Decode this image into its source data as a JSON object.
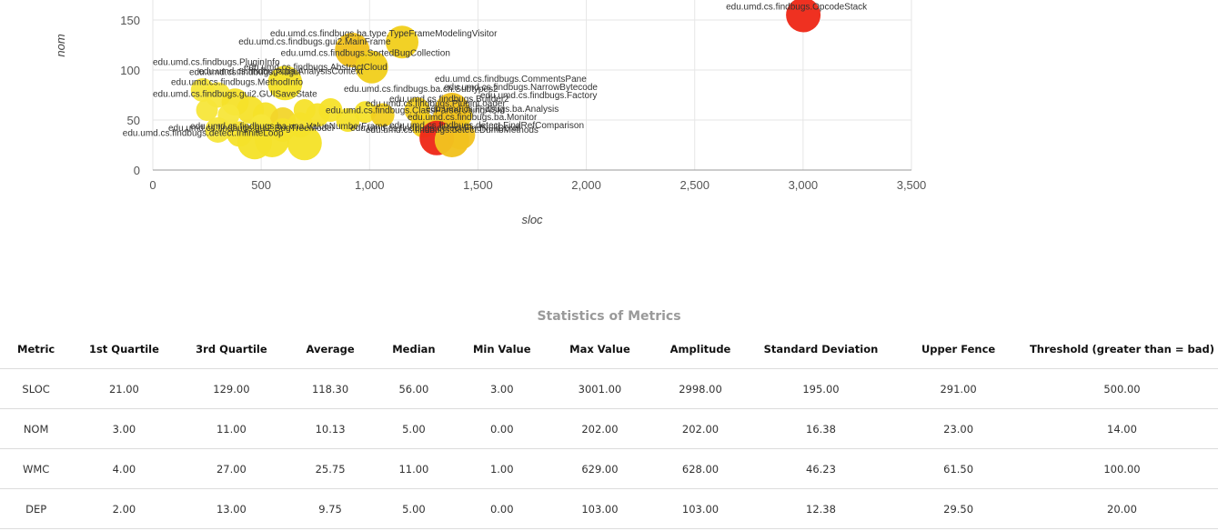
{
  "chart_data": {
    "type": "scatter",
    "xlabel": "sloc",
    "ylabel": "nom",
    "xlim": [
      0,
      3500
    ],
    "ylim": [
      0,
      160
    ],
    "x_ticks": [
      "0",
      "500",
      "1,000",
      "1,500",
      "2,000",
      "2,500",
      "3,000",
      "3,500"
    ],
    "y_ticks": [
      "0",
      "50",
      "100",
      "150"
    ],
    "points": [
      {
        "label": "edu.umd.cs.findbugs.OpcodeStack",
        "x": 3001,
        "y": 155,
        "color": "#ee2a1a"
      },
      {
        "label": "edu.umd.cs.findbugs.ba.type.TypeFrameModelingVisitor",
        "x": 1150,
        "y": 128,
        "color": "#f2cf1f"
      },
      {
        "label": "edu.umd.cs.findbugs.gui2.MainFrame",
        "x": 920,
        "y": 120,
        "color": "#f2c21f"
      },
      {
        "label": "edu.umd.cs.findbugs.SortedBugCollection",
        "x": 1010,
        "y": 103,
        "color": "#f2cf1f"
      },
      {
        "label": "edu.umd.cs.findbugs.ba.AnalysisContext",
        "x": 610,
        "y": 87,
        "color": "#f5e22a"
      },
      {
        "label": "edu.umd.cs.findbugs.PluginLoader",
        "x": 1380,
        "y": 60,
        "color": "#f2c21f"
      },
      {
        "label": "edu.umd.cs.findbugs.detect.FindNullDeref",
        "x": 1310,
        "y": 32,
        "color": "#ee2a1a"
      },
      {
        "label": "edu.umd.cs.findbugs.detect.DumbMethods",
        "x": 1380,
        "y": 30,
        "color": "#f2c21f"
      },
      {
        "label": "edu.umd.cs.findbugs.detect.InfiniteLoop",
        "x": 700,
        "y": 27,
        "color": "#f5e22a"
      },
      {
        "label": "edu.umd.cs.findbugs.ba.vna.ValueNumberFrame",
        "x": 550,
        "y": 30,
        "color": "#f5e22a"
      },
      {
        "label": "edu.umd.cs.findbugs.gui2.BugTreeModel",
        "x": 470,
        "y": 28,
        "color": "#f5e22a"
      }
    ],
    "overlap_labels": [
      "edu.umd.cs.findbugs.PluginInfo",
      "edu.umd.cs.findbugs.Plugin",
      "edu.umd.cs.findbugs.MethodInfo",
      "edu.umd.cs.findbugs.AbstractCloud",
      "edu.umd.cs.findbugs.CommentsPane",
      "edu.umd.cs.findbugs.ba.ch.Subtypes2",
      "edu.umd.cs.findbugs.NarrowBytecode",
      "edu.umd.cs.findbugs.Factory",
      "edu.umd.cs.findbugs.gui2.GUISaveState",
      "edu.umd.cs.findbugs.Builder2",
      "edu.umd.cs.findbugs.ClassParserUsingASM",
      "edu.umd.cs.findbugs.ba.Analysis",
      "edu.umd.cs.findbugs.ba.Monitor",
      "edu.umd.cs.findbugs.detect.FindRefComparison"
    ],
    "grid": true
  },
  "stats": {
    "title": "Statistics of Metrics",
    "headers": [
      "Metric",
      "1st Quartile",
      "3rd Quartile",
      "Average",
      "Median",
      "Min Value",
      "Max Value",
      "Amplitude",
      "Standard Deviation",
      "Upper Fence",
      "Threshold (greater than = bad)"
    ],
    "rows": [
      [
        "SLOC",
        "21.00",
        "129.00",
        "118.30",
        "56.00",
        "3.00",
        "3001.00",
        "2998.00",
        "195.00",
        "291.00",
        "500.00"
      ],
      [
        "NOM",
        "3.00",
        "11.00",
        "10.13",
        "5.00",
        "0.00",
        "202.00",
        "202.00",
        "16.38",
        "23.00",
        "14.00"
      ],
      [
        "WMC",
        "4.00",
        "27.00",
        "25.75",
        "11.00",
        "1.00",
        "629.00",
        "628.00",
        "46.23",
        "61.50",
        "100.00"
      ],
      [
        "DEP",
        "2.00",
        "13.00",
        "9.75",
        "5.00",
        "0.00",
        "103.00",
        "103.00",
        "12.38",
        "29.50",
        "20.00"
      ]
    ]
  }
}
